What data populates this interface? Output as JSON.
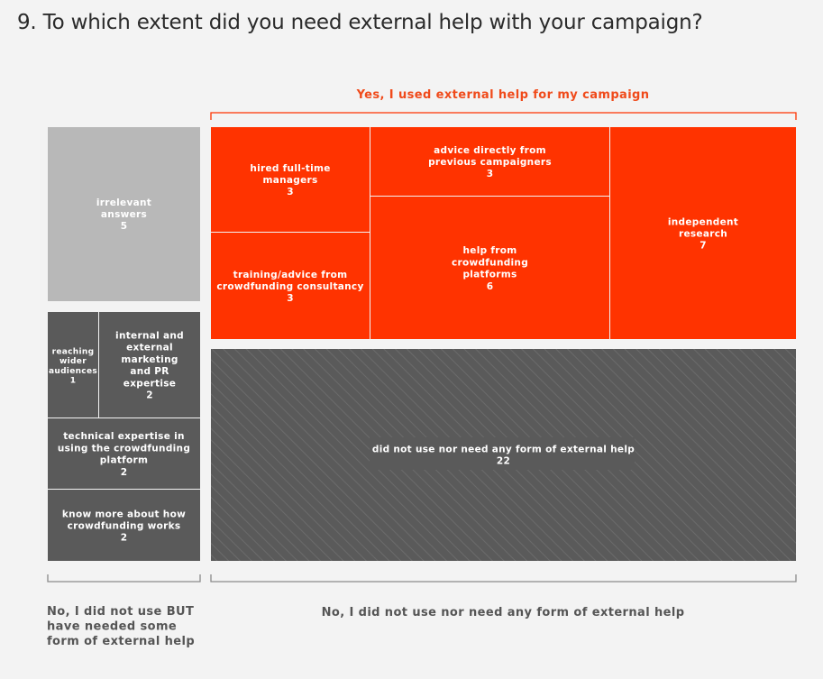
{
  "question": "9. To which extent did you need external help with your campaign?",
  "colors": {
    "yes": "#ff3300",
    "yes_text": "#f04a1a",
    "irrelevant": "#b8b8b8",
    "no_but_needed": "#5a5a5a",
    "no_need": "#5a5a5a",
    "bracket": "#8a8a8a",
    "group_text": "#555555"
  },
  "chart_data": {
    "type": "treemap",
    "groups": [
      {
        "key": "yes",
        "label": "Yes, I used external help for my campaign",
        "cells": [
          {
            "label": [
              "hired full-time",
              "managers"
            ],
            "value": 3
          },
          {
            "label": [
              "training/advice from",
              "crowdfunding consultancy"
            ],
            "value": 3
          },
          {
            "label": [
              "advice directly from",
              "previous campaigners"
            ],
            "value": 3
          },
          {
            "label": [
              "help from",
              "crowdfunding",
              "platforms"
            ],
            "value": 6
          },
          {
            "label": [
              "independent",
              "research"
            ],
            "value": 7
          }
        ]
      },
      {
        "key": "irrelevant",
        "label": "",
        "cells": [
          {
            "label": [
              "irrelevant",
              "answers"
            ],
            "value": 5
          }
        ]
      },
      {
        "key": "no_but_needed",
        "label": "No, I did not use BUT have needed some form of external help",
        "label_lines": [
          "No, I did not use BUT",
          "have needed some",
          "form of external help"
        ],
        "cells": [
          {
            "label": [
              "reaching",
              "wider",
              "audiences"
            ],
            "value": 1
          },
          {
            "label": [
              "internal and",
              "external",
              "marketing",
              "and PR",
              "expertise"
            ],
            "value": 2
          },
          {
            "label": [
              "technical expertise in",
              "using the crowdfunding",
              "platform"
            ],
            "value": 2
          },
          {
            "label": [
              "know more about how",
              "crowdfunding works"
            ],
            "value": 2
          }
        ]
      },
      {
        "key": "no_need",
        "label": "No, I did not use nor need any form of external help",
        "cells": [
          {
            "label": [
              "did not use nor need any form of external help"
            ],
            "value": 22
          }
        ]
      }
    ]
  }
}
